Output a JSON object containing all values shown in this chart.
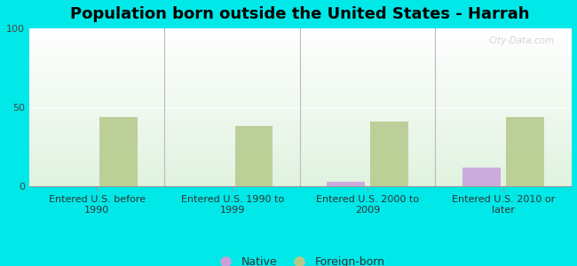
{
  "title": "Population born outside the United States - Harrah",
  "categories": [
    "Entered U.S. before\n1990",
    "Entered U.S. 1990 to\n1999",
    "Entered U.S. 2000 to\n2009",
    "Entered U.S. 2010 or\nlater"
  ],
  "native_values": [
    0,
    0,
    3,
    12
  ],
  "foreign_born_values": [
    44,
    38,
    41,
    44
  ],
  "native_color": "#c9a0dc",
  "foreign_born_color": "#b5c98a",
  "background_color": "#00e8e8",
  "ylim": [
    0,
    100
  ],
  "yticks": [
    0,
    50,
    100
  ],
  "bar_width": 0.28,
  "title_fontsize": 13,
  "tick_fontsize": 8,
  "legend_fontsize": 9,
  "watermark": "City-Data.com"
}
